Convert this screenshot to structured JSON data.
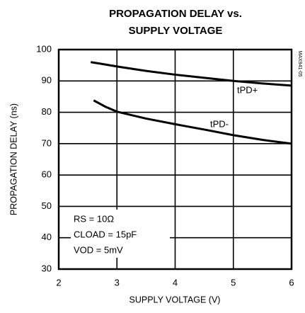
{
  "chart_data": {
    "type": "line",
    "title": [
      "PROPAGATION DELAY vs.",
      "SUPPLY VOLTAGE"
    ],
    "xlabel": "SUPPLY VOLTAGE (V)",
    "ylabel": "PROPAGATION DELAY (ns)",
    "xlim": [
      2,
      6
    ],
    "xticks": [
      2,
      3,
      4,
      5,
      6
    ],
    "ylim": [
      30,
      100
    ],
    "yticks": [
      30,
      40,
      50,
      60,
      70,
      80,
      90,
      100
    ],
    "grid": true,
    "series": [
      {
        "name": "tPD+",
        "color": "#000000",
        "x": [
          2.55,
          2.75,
          3,
          3.5,
          4,
          4.5,
          5,
          5.5,
          6
        ],
        "values": [
          96,
          95.4,
          94.6,
          93.2,
          92,
          91,
          90,
          89.2,
          88.5
        ]
      },
      {
        "name": "tPD-",
        "color": "#000000",
        "x": [
          2.6,
          2.8,
          3,
          3.5,
          4,
          4.5,
          5,
          5.5,
          6
        ],
        "values": [
          83.8,
          81.8,
          80.2,
          78,
          76.2,
          74.5,
          72.7,
          71.2,
          70
        ]
      }
    ],
    "annotations": [
      "RS = 10Ω",
      "CLOAD = 15pF",
      "VOD = 5mV",
      "MAX941-05"
    ]
  }
}
